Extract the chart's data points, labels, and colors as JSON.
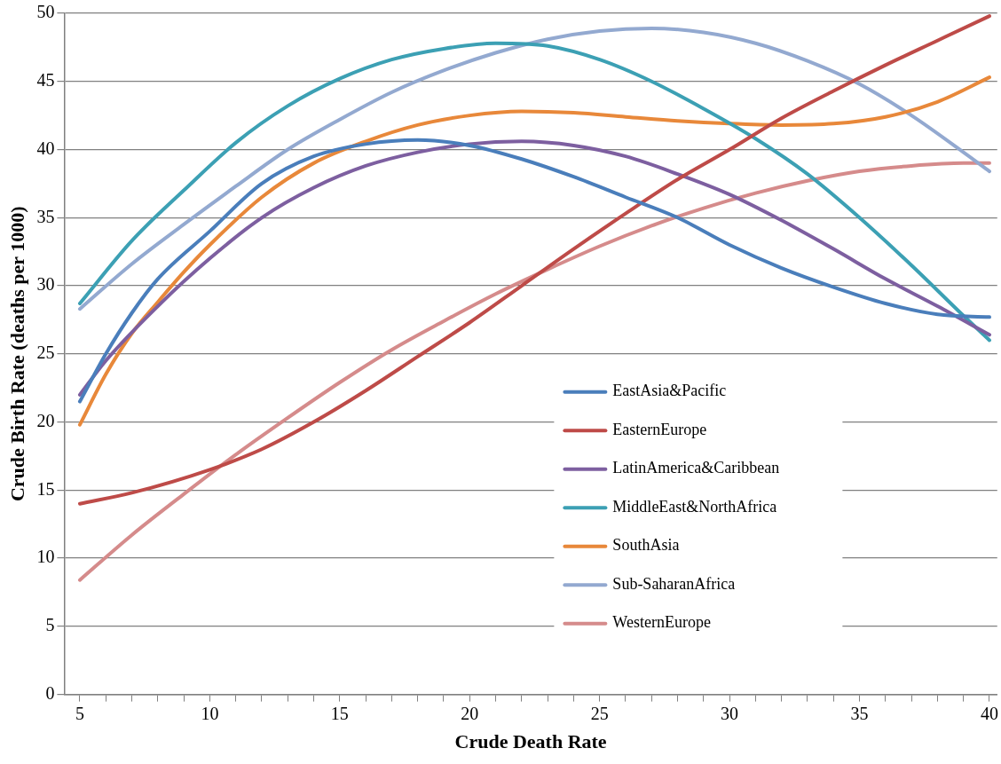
{
  "chart_data": {
    "type": "line",
    "xlabel": "Crude Death Rate",
    "ylabel": "Crude Birth Rate (deaths per 1000)",
    "xlim": [
      4.4,
      40.3
    ],
    "xticks": [
      5,
      {
        "value": 6,
        "label": null
      },
      {
        "value": 7,
        "label": null
      },
      {
        "value": 8,
        "label": null
      },
      {
        "value": 9,
        "label": null
      },
      10,
      {
        "value": 11,
        "label": null
      },
      {
        "value": 12,
        "label": null
      },
      {
        "value": 13,
        "label": null
      },
      {
        "value": 14,
        "label": null
      },
      15,
      {
        "value": 16,
        "label": null
      },
      {
        "value": 17,
        "label": null
      },
      {
        "value": 18,
        "label": null
      },
      {
        "value": 19,
        "label": null
      },
      20,
      {
        "value": 21,
        "label": null
      },
      {
        "value": 22,
        "label": null
      },
      {
        "value": 23,
        "label": null
      },
      {
        "value": 24,
        "label": null
      },
      25,
      {
        "value": 26,
        "label": null
      },
      {
        "value": 27,
        "label": null
      },
      {
        "value": 28,
        "label": null
      },
      {
        "value": 29,
        "label": null
      },
      30,
      {
        "value": 31,
        "label": null
      },
      {
        "value": 32,
        "label": null
      },
      {
        "value": 33,
        "label": null
      },
      {
        "value": 34,
        "label": null
      },
      35,
      {
        "value": 36,
        "label": null
      },
      {
        "value": 37,
        "label": null
      },
      {
        "value": 38,
        "label": null
      },
      {
        "value": 39,
        "label": null
      },
      40
    ],
    "ylim": [
      0,
      50
    ],
    "yticks": [
      0,
      5,
      10,
      15,
      20,
      25,
      30,
      35,
      40,
      45,
      50
    ],
    "grid": "y",
    "legend": "bottom right",
    "marker": "none",
    "line_style": "solid",
    "series": [
      {
        "name": "EastAsia&Pacific",
        "color": "#4a7ebb",
        "x": [
          5,
          6,
          7,
          8,
          10,
          12,
          14,
          16,
          18,
          20,
          22,
          24,
          26,
          28,
          30,
          32,
          34,
          36,
          38,
          40
        ],
        "values": [
          21.5,
          25,
          28,
          30.5,
          34,
          37.5,
          39.5,
          40.4,
          40.7,
          40.3,
          39.3,
          38,
          36.5,
          35,
          33,
          31.3,
          29.9,
          28.7,
          27.9,
          27.7
        ]
      },
      {
        "name": "EasternEurope",
        "color": "#be4b48",
        "x": [
          5,
          7,
          10,
          12,
          14,
          16,
          18,
          20,
          22,
          24,
          26,
          28,
          30,
          32,
          34,
          36,
          38,
          40
        ],
        "values": [
          14,
          14.8,
          16.5,
          18,
          20,
          22.3,
          24.8,
          27.3,
          30,
          32.7,
          35.3,
          37.8,
          40,
          42.3,
          44.3,
          46.2,
          48,
          49.8
        ]
      },
      {
        "name": "LatinAmerica&Caribbean",
        "color": "#7d5fa0",
        "x": [
          5,
          6,
          8,
          10,
          12,
          14,
          16,
          18,
          20,
          22,
          24,
          26,
          28,
          30,
          32,
          34,
          36,
          38,
          40
        ],
        "values": [
          22,
          24.5,
          28.5,
          32,
          35,
          37.2,
          38.8,
          39.8,
          40.4,
          40.6,
          40.3,
          39.5,
          38.2,
          36.7,
          34.8,
          32.7,
          30.5,
          28.5,
          26.4
        ]
      },
      {
        "name": "MiddleEast&NorthAfrica",
        "color": "#3ca0b4",
        "x": [
          5,
          7,
          9,
          11,
          13,
          15,
          17,
          19,
          21,
          23,
          25,
          27,
          29,
          31,
          33,
          35,
          37,
          39,
          40
        ],
        "values": [
          28.7,
          33.3,
          37,
          40.5,
          43.2,
          45.2,
          46.6,
          47.4,
          47.8,
          47.6,
          46.6,
          45,
          43,
          40.8,
          38.2,
          35,
          31.5,
          27.8,
          26
        ]
      },
      {
        "name": "SouthAsia",
        "color": "#e8883a",
        "x": [
          5,
          6,
          7,
          8,
          9,
          10,
          12,
          14,
          16,
          18,
          20,
          22,
          24,
          26,
          28,
          30,
          32,
          34,
          36,
          38,
          40
        ],
        "values": [
          19.8,
          23.5,
          26.5,
          28.8,
          31,
          33,
          36.5,
          39,
          40.6,
          41.8,
          42.5,
          42.8,
          42.7,
          42.4,
          42.1,
          41.9,
          41.8,
          41.9,
          42.4,
          43.5,
          45.3
        ]
      },
      {
        "name": "Sub-SaharanAfrica",
        "color": "#93a9d0",
        "x": [
          5,
          7,
          9,
          11,
          13,
          15,
          17,
          19,
          21,
          23,
          25,
          27,
          29,
          31,
          33,
          35,
          37,
          39,
          40
        ],
        "values": [
          28.3,
          31.6,
          34.5,
          37.3,
          40,
          42.2,
          44.2,
          45.8,
          47.1,
          48.1,
          48.7,
          48.9,
          48.6,
          47.8,
          46.5,
          44.8,
          42.5,
          39.8,
          38.4
        ]
      },
      {
        "name": "WesternEurope",
        "color": "#d58b8b",
        "x": [
          5,
          7,
          9,
          11,
          13,
          15,
          17,
          19,
          21,
          23,
          25,
          27,
          29,
          31,
          33,
          35,
          37,
          39,
          40
        ],
        "values": [
          8.4,
          11.7,
          14.7,
          17.6,
          20.3,
          22.9,
          25.3,
          27.4,
          29.4,
          31.2,
          32.9,
          34.4,
          35.7,
          36.8,
          37.7,
          38.4,
          38.8,
          39,
          39
        ]
      }
    ]
  }
}
